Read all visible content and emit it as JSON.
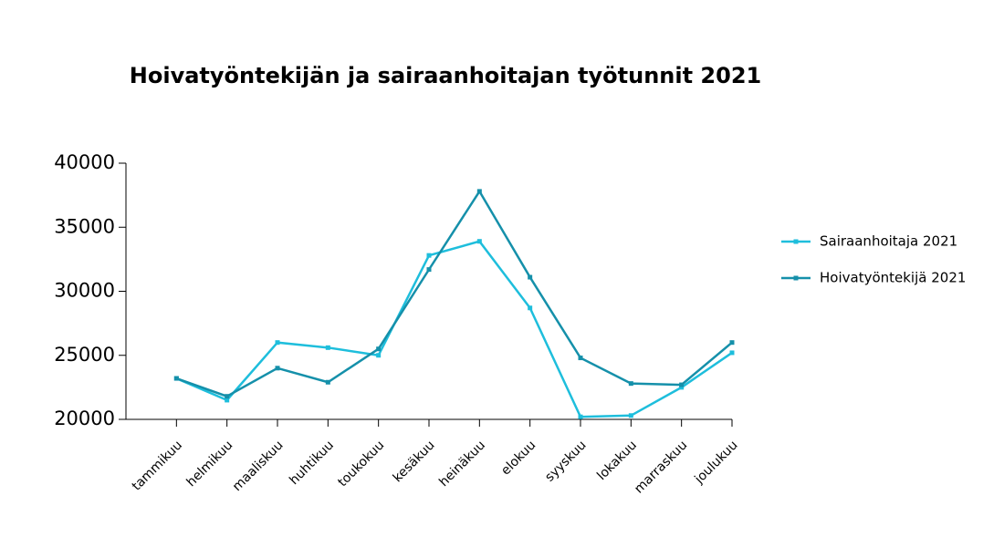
{
  "chart_data": {
    "type": "line",
    "title": "Hoivatyöntekijän ja sairaanhoitajan työtunnit 2021",
    "categories": [
      "tammikuu",
      "helmikuu",
      "maaliskuu",
      "huhtikuu",
      "toukokuu",
      "kesäkuu",
      "heinäkuu",
      "elokuu",
      "syyskuu",
      "lokakuu",
      "marraskuu",
      "joulukuu"
    ],
    "series": [
      {
        "name": "Sairaanhoitaja 2021",
        "color": "#1ebedc",
        "values": [
          23200,
          21500,
          26000,
          25600,
          25000,
          32800,
          33900,
          28700,
          20200,
          20300,
          22500,
          25200
        ]
      },
      {
        "name": "Hoivatyöntekijä 2021",
        "color": "#1590aa",
        "values": [
          23200,
          21800,
          24000,
          22900,
          25500,
          31700,
          37800,
          31100,
          24800,
          22800,
          22700,
          26000
        ]
      }
    ],
    "ylim": [
      20000,
      40000
    ],
    "yticks": [
      20000,
      25000,
      30000,
      35000,
      40000
    ],
    "grid": false,
    "legend": "right"
  }
}
